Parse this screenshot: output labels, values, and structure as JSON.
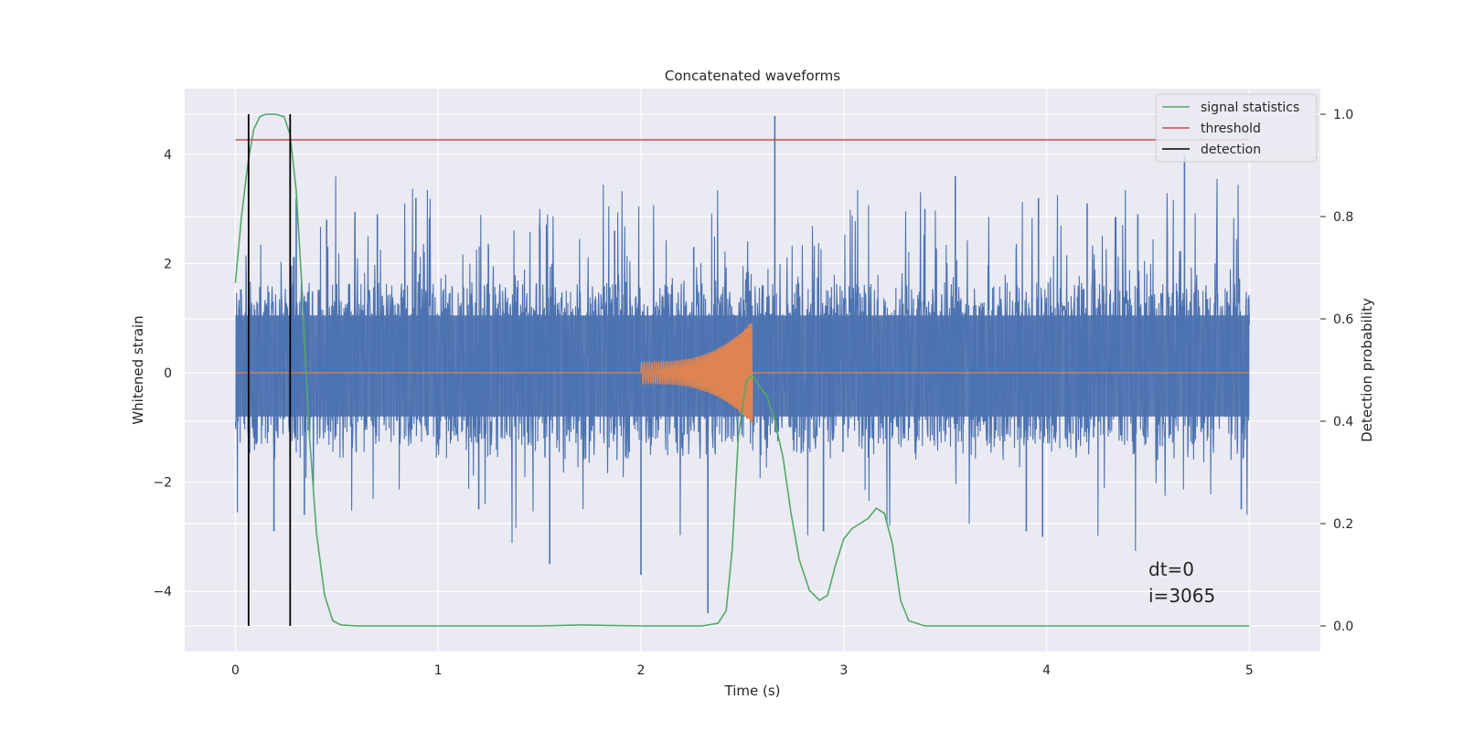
{
  "chart_data": {
    "type": "line",
    "title": "Concatenated waveforms",
    "xlabel": "Time (s)",
    "ylabel": "Whitened strain",
    "ylabel_right": "Detection probability",
    "xlim": [
      -0.25,
      5.35
    ],
    "ylim": [
      -5.1,
      5.2
    ],
    "ylim_right": [
      -0.05,
      1.05
    ],
    "xticks": [
      0,
      1,
      2,
      3,
      4,
      5
    ],
    "xtick_labels": [
      "0",
      "1",
      "2",
      "3",
      "4",
      "5"
    ],
    "yticks": [
      -4,
      -2,
      0,
      2,
      4
    ],
    "ytick_labels": [
      "−4",
      "−2",
      "0",
      "2",
      "4"
    ],
    "yticks_right": [
      0.0,
      0.2,
      0.4,
      0.6,
      0.8,
      1.0
    ],
    "ytick_right_labels": [
      "0.0",
      "0.2",
      "0.4",
      "0.6",
      "0.8",
      "1.0"
    ],
    "grid": true,
    "legend_position": "top-right",
    "annotation": [
      "dt=0",
      "i=3065"
    ],
    "colors": {
      "background": "#eaeaf2",
      "grid": "#ffffff",
      "strain": "#4c72b0",
      "template": "#dd8452",
      "signal": "#55a868",
      "threshold": "#c44e52",
      "detection": "#000000"
    },
    "series": [
      {
        "name": "signal statistics",
        "axis": "right",
        "x": [
          0.0,
          0.03,
          0.06,
          0.09,
          0.12,
          0.15,
          0.2,
          0.24,
          0.27,
          0.3,
          0.33,
          0.36,
          0.4,
          0.44,
          0.48,
          0.52,
          0.6,
          1.0,
          1.5,
          1.7,
          2.0,
          2.3,
          2.38,
          2.42,
          2.45,
          2.48,
          2.52,
          2.55,
          2.58,
          2.62,
          2.66,
          2.7,
          2.74,
          2.78,
          2.83,
          2.88,
          2.92,
          2.96,
          3.0,
          3.04,
          3.08,
          3.12,
          3.16,
          3.2,
          3.24,
          3.28,
          3.32,
          3.4,
          4.0,
          5.0
        ],
        "y": [
          0.67,
          0.8,
          0.9,
          0.97,
          0.995,
          1.0,
          1.0,
          0.995,
          0.96,
          0.85,
          0.65,
          0.4,
          0.18,
          0.06,
          0.01,
          0.002,
          0.0,
          0.0,
          0.0,
          0.002,
          0.0,
          0.0,
          0.005,
          0.03,
          0.15,
          0.37,
          0.48,
          0.49,
          0.47,
          0.45,
          0.4,
          0.33,
          0.22,
          0.13,
          0.07,
          0.05,
          0.06,
          0.12,
          0.17,
          0.19,
          0.2,
          0.21,
          0.23,
          0.22,
          0.16,
          0.05,
          0.01,
          0.0,
          0.0,
          0.0
        ]
      },
      {
        "name": "threshold",
        "axis": "right",
        "x": [
          0,
          5
        ],
        "y": [
          0.95,
          0.95
        ]
      },
      {
        "name": "detection",
        "axis": "right",
        "x": [
          0.065,
          0.27
        ],
        "y": [
          0.0,
          1.0
        ]
      }
    ],
    "strain": {
      "x_range": [
        0,
        5
      ],
      "y_bounds": [
        -0.8,
        1.05
      ],
      "peaks": [
        [
          0.3,
          3.2
        ],
        [
          0.45,
          2.8
        ],
        [
          0.7,
          2.9
        ],
        [
          0.89,
          3.2
        ],
        [
          1.5,
          2.7
        ],
        [
          1.55,
          -3.5
        ],
        [
          1.87,
          2.6
        ],
        [
          2.0,
          -3.7
        ],
        [
          2.26,
          2.3
        ],
        [
          2.33,
          -4.4
        ],
        [
          2.66,
          4.7
        ],
        [
          2.9,
          -2.9
        ],
        [
          3.55,
          3.6
        ],
        [
          3.9,
          -2.9
        ],
        [
          3.96,
          3.2
        ],
        [
          3.98,
          -3.0
        ],
        [
          4.2,
          3.1
        ],
        [
          4.68,
          4.0
        ],
        [
          0.19,
          -2.9
        ],
        [
          0.34,
          -2.6
        ],
        [
          1.2,
          -2.5
        ],
        [
          3.4,
          3.0
        ],
        [
          4.45,
          2.9
        ],
        [
          4.96,
          -2.5
        ]
      ]
    },
    "template": {
      "x_start": 2.0,
      "x_end": 2.55,
      "amp_start": 0.2,
      "amp_end": 0.95
    }
  }
}
